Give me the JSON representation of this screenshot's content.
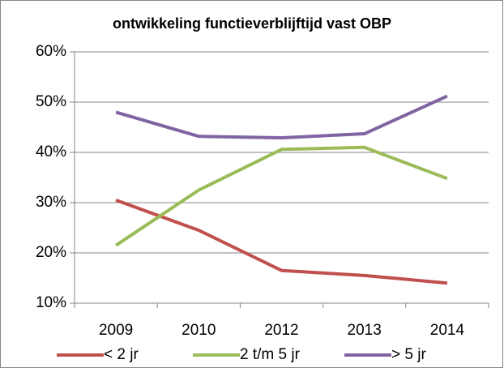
{
  "chart_data": {
    "type": "line",
    "title": "ontwikkeling functieverblijftijd vast OBP",
    "categories": [
      "2009",
      "2010",
      "2012",
      "2013",
      "2014"
    ],
    "series": [
      {
        "name": "< 2 jr",
        "color": "#c0504d",
        "values": [
          30.5,
          24.5,
          16.5,
          15.5,
          14
        ]
      },
      {
        "name": "2 t/m 5 jr",
        "color": "#9bbb59",
        "values": [
          21.5,
          32.5,
          40.6,
          41,
          34.8
        ]
      },
      {
        "name": "> 5 jr",
        "color": "#8064a2",
        "values": [
          48,
          43.2,
          42.9,
          43.7,
          51.2
        ]
      }
    ],
    "ylim": [
      10,
      60
    ],
    "yticks": [
      {
        "value": 10,
        "label": "10%"
      },
      {
        "value": 20,
        "label": "20%"
      },
      {
        "value": 30,
        "label": "30%"
      },
      {
        "value": 40,
        "label": "40%"
      },
      {
        "value": 50,
        "label": "50%"
      },
      {
        "value": 60,
        "label": "60%"
      }
    ],
    "grid": true,
    "legend": "bottom"
  }
}
